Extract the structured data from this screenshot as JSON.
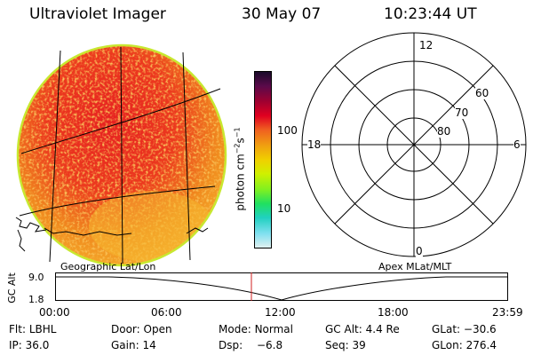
{
  "header": {
    "instrument": "Ultraviolet Imager",
    "date": "30 May 07",
    "time": "10:23:44 UT"
  },
  "colorbar": {
    "unit_label": "photon cm",
    "unit_exp1": "−2",
    "unit_mid": "s",
    "unit_exp2": "−1",
    "ticks": [
      {
        "label": "100",
        "value": 100
      },
      {
        "label": "10",
        "value": 10
      }
    ],
    "colors": [
      "#1a0a2a",
      "#5a0a4a",
      "#a00030",
      "#e00020",
      "#f06020",
      "#f0a010",
      "#f0d000",
      "#d0f000",
      "#80f020",
      "#20e060",
      "#20d0c0",
      "#80e0f0",
      "#e0f0f0"
    ]
  },
  "polar": {
    "clock_labels": {
      "top": "12",
      "right": "6",
      "bottom": "0",
      "left": "18"
    },
    "lat_labels": [
      "60",
      "70",
      "80"
    ]
  },
  "timeline": {
    "left_label": "Geographic Lat/Lon",
    "right_label": "Apex MLat/MLT",
    "axis_label": "GC Alt",
    "y_ticks": [
      "9.0",
      "1.8"
    ],
    "x_ticks": [
      "00:00",
      "06:00",
      "12:00",
      "18:00",
      "23:59"
    ],
    "current_marker_hours": 10.4
  },
  "status": {
    "flt_label": "Flt:",
    "flt_value": "LBHL",
    "ip_label": "IP:",
    "ip_value": "36.0",
    "door_label": "Door:",
    "door_value": "Open",
    "gain_label": "Gain:",
    "gain_value": "14",
    "mode_label": "Mode:",
    "mode_value": "Normal",
    "dsp_label": "Dsp:",
    "dsp_value": "−6.8",
    "gcalt_label": "GC Alt:",
    "gcalt_value": "4.4 Re",
    "seq_label": "Seq:",
    "seq_value": "39",
    "glat_label": "GLat:",
    "glat_value": "−30.6",
    "glon_label": "GLon:",
    "glon_value": "276.4"
  },
  "colors": {
    "disk_base": "#f08a1e",
    "disk_hot": "#e61e1e",
    "disk_cool": "#f5b830",
    "disk_rim": "#c8e830"
  }
}
